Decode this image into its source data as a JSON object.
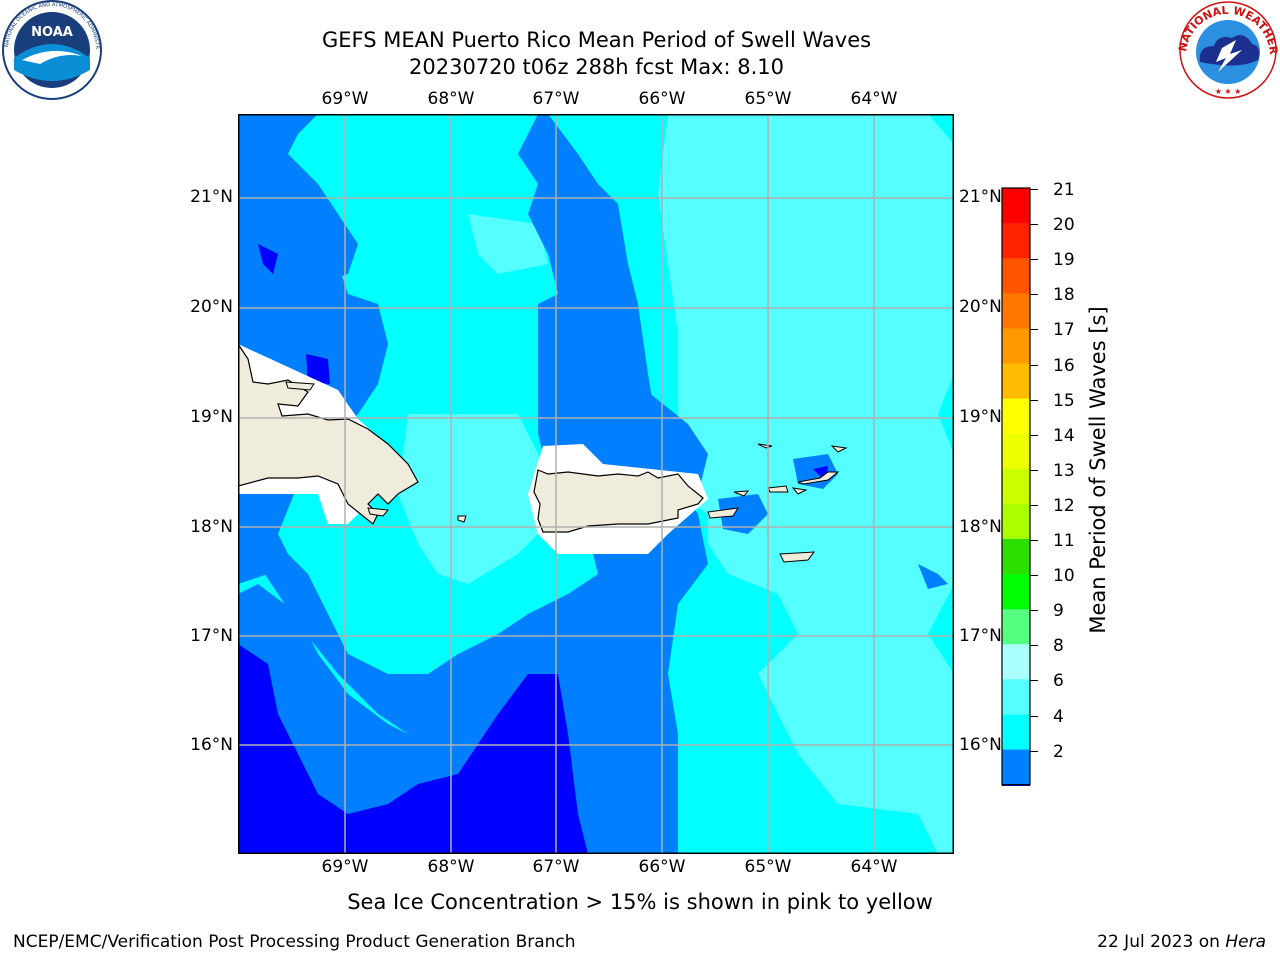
{
  "header": {
    "title_line1": "GEFS MEAN Puerto Rico Mean Period of Swell Waves",
    "title_line2": "20230720 t06z 288h fcst   Max: 8.10"
  },
  "logos": {
    "left": {
      "name": "noaa-logo",
      "text": "NOAA",
      "ring_text": "NATIONAL OCEANIC AND ATMOSPHERIC ADMINISTRATION · U.S. DEPARTMENT OF COMMERCE"
    },
    "right": {
      "name": "nws-logo",
      "ring_text": "NATIONAL WEATHER SERVICE"
    }
  },
  "map": {
    "longitude_labels": [
      "69°W",
      "68°W",
      "67°W",
      "66°W",
      "65°W",
      "64°W"
    ],
    "latitude_labels": [
      "21°N",
      "20°N",
      "19°N",
      "18°N",
      "17°N",
      "16°N"
    ],
    "colors": {
      "land": "#efecdc",
      "mask": "#ffffff",
      "grid": "#b0b0b0",
      "band_2_4": "#0080ff",
      "band_below_2": "#0000ff",
      "band_4_6": "#00ffff",
      "band_6_8": "#55ffff"
    }
  },
  "colorbar": {
    "label": "Mean Period of Swell Waves [s]",
    "tick_labels": [
      "21",
      "20",
      "19",
      "18",
      "17",
      "16",
      "15",
      "14",
      "13",
      "12",
      "11",
      "10",
      "9",
      "8",
      "6",
      "4",
      "2"
    ],
    "levels": [
      {
        "from": "2",
        "to": "4",
        "color": "#0080ff"
      },
      {
        "from": "4",
        "to": "6",
        "color": "#00ffff"
      },
      {
        "from": "6",
        "to": "8",
        "color": "#55ffff"
      },
      {
        "from": "8",
        "to": "9",
        "color": "#aaffff"
      },
      {
        "from": "9",
        "to": "10",
        "color": "#55ff80"
      },
      {
        "from": "10",
        "to": "11",
        "color": "#00ff00"
      },
      {
        "from": "11",
        "to": "12",
        "color": "#2bdf00"
      },
      {
        "from": "12",
        "to": "13",
        "color": "#aaff00"
      },
      {
        "from": "13",
        "to": "14",
        "color": "#ccff00"
      },
      {
        "from": "14",
        "to": "15",
        "color": "#eeff00"
      },
      {
        "from": "15",
        "to": "16",
        "color": "#ffff00"
      },
      {
        "from": "16",
        "to": "17",
        "color": "#ffbb00"
      },
      {
        "from": "17",
        "to": "18",
        "color": "#ff9900"
      },
      {
        "from": "18",
        "to": "19",
        "color": "#ff7700"
      },
      {
        "from": "19",
        "to": "20",
        "color": "#ff5500"
      },
      {
        "from": "20",
        "to": "21",
        "color": "#ff2200"
      },
      {
        "from": "21",
        "to": "",
        "color": "#ff0000"
      }
    ],
    "under_color": "#0000ff"
  },
  "caption": "Sea Ice Concentration > 15% is shown in pink to yellow",
  "footer": {
    "left": "NCEP/EMC/Verification Post Processing Product Generation Branch",
    "date": "22 Jul 2023 on ",
    "machine": "Hera"
  }
}
